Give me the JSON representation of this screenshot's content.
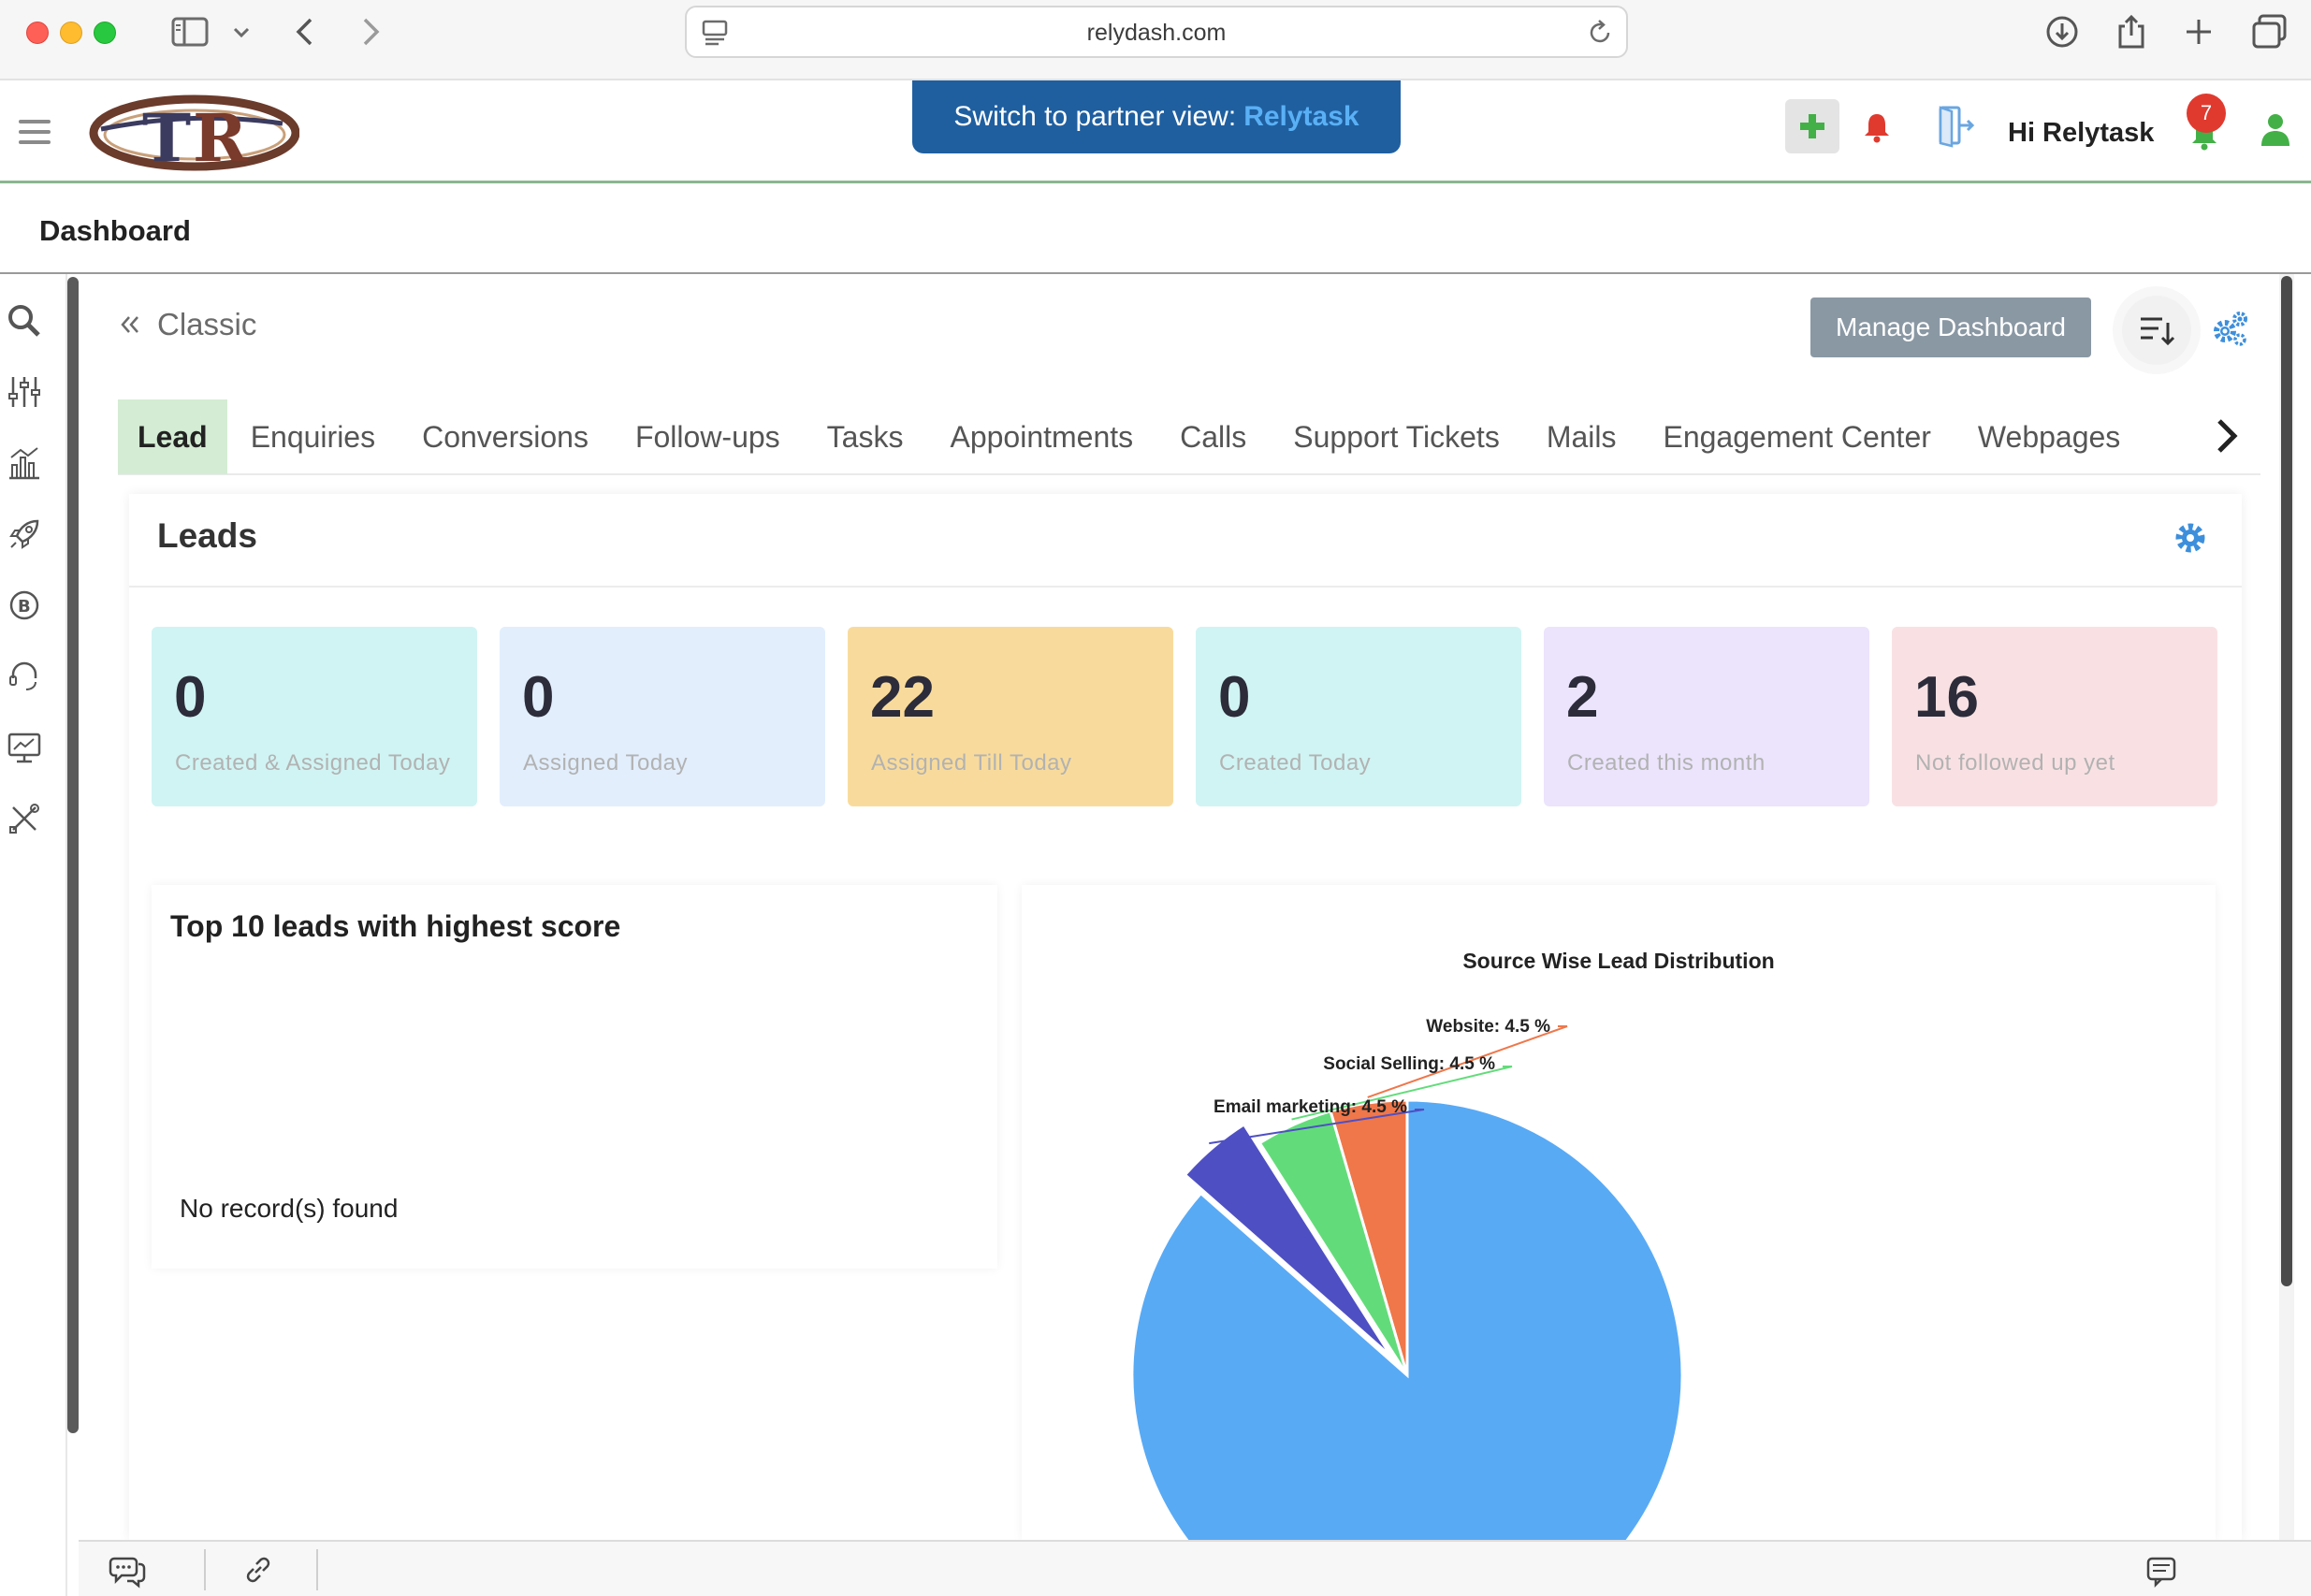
{
  "browser": {
    "url": "relydash.com",
    "icons": [
      "sidebar-toggle-icon",
      "chevron-down-icon",
      "back-icon",
      "forward-icon",
      "site-settings-icon",
      "reload-icon",
      "download-icon",
      "share-icon",
      "new-tab-icon",
      "tab-overview-icon"
    ]
  },
  "header": {
    "partner_prefix": "Switch to partner view:",
    "partner_name": "Relytask",
    "greeting": "Hi Relytask",
    "notification_count": "7",
    "colors": {
      "brand": "#1f5fa0",
      "add_icon": "#43b047",
      "alert": "#e03a2f"
    }
  },
  "page": {
    "title": "Dashboard"
  },
  "sidebar": {
    "icons": [
      "search-icon",
      "filters-icon",
      "analytics-icon",
      "rocket-icon",
      "bitcoin-icon",
      "support-icon",
      "monitor-chart-icon",
      "tools-icon"
    ]
  },
  "main": {
    "view_label": "Classic",
    "manage_label": "Manage Dashboard",
    "tabs": [
      {
        "label": "Lead",
        "active": true
      },
      {
        "label": "Enquiries"
      },
      {
        "label": "Conversions"
      },
      {
        "label": "Follow-ups"
      },
      {
        "label": "Tasks"
      },
      {
        "label": "Appointments"
      },
      {
        "label": "Calls"
      },
      {
        "label": "Support Tickets"
      },
      {
        "label": "Mails"
      },
      {
        "label": "Engagement Center"
      },
      {
        "label": "Webpages"
      }
    ]
  },
  "leads": {
    "title": "Leads",
    "stats": [
      {
        "value": "0",
        "label": "Created & Assigned Today",
        "color": "#d0f4f3"
      },
      {
        "value": "0",
        "label": "Assigned Today",
        "color": "#e2eefc"
      },
      {
        "value": "22",
        "label": "Assigned Till Today",
        "color": "#f8db9c"
      },
      {
        "value": "0",
        "label": "Created Today",
        "color": "#d0f4f3"
      },
      {
        "value": "2",
        "label": "Created this month",
        "color": "#ebe4fc"
      },
      {
        "value": "16",
        "label": "Not followed up yet",
        "color": "#f9e1e3"
      }
    ],
    "top10_title": "Top 10 leads with highest score",
    "top10_empty": "No record(s) found"
  },
  "chart_data": {
    "type": "pie",
    "title": "Source Wise Lead Distribution",
    "slices": [
      {
        "label": "Email marketing: 4.5 %",
        "value": 4.5,
        "color": "#4f4fc4",
        "exploded": true
      },
      {
        "label": "Social Selling: 4.5 %",
        "value": 4.5,
        "color": "#62dc7a"
      },
      {
        "label": "Website: 4.5 %",
        "value": 4.5,
        "color": "#ef774a"
      },
      {
        "label": "",
        "value": 86.5,
        "color": "#58aaf5"
      }
    ]
  }
}
